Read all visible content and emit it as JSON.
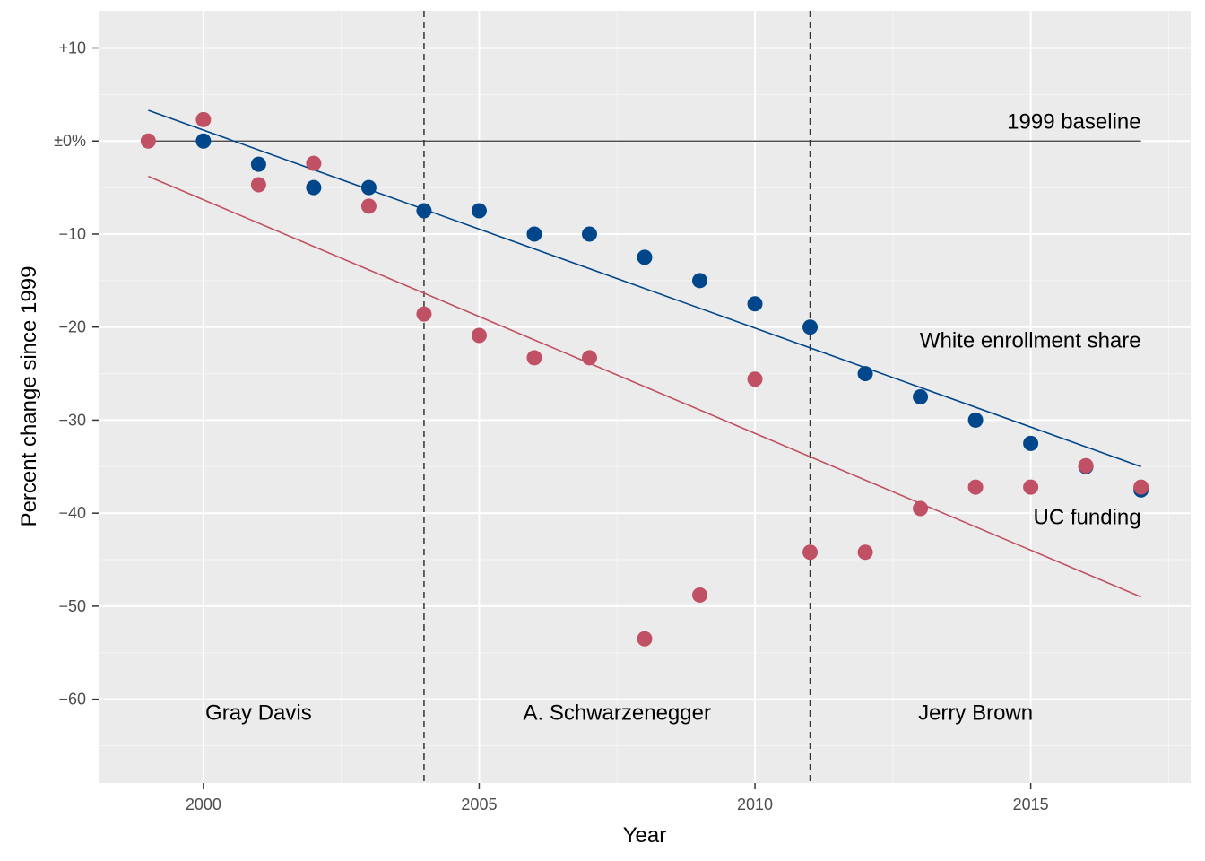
{
  "chart_data": {
    "type": "scatter",
    "title": "",
    "xlabel": "Year",
    "ylabel": "Percent change since 1999",
    "xlim": [
      1998.1,
      2017.9
    ],
    "ylim": [
      -69,
      14
    ],
    "x_ticks": [
      2000,
      2005,
      2010,
      2015
    ],
    "x_tick_labels": [
      "2000",
      "2005",
      "2010",
      "2015"
    ],
    "y_ticks": [
      10,
      0,
      -10,
      -20,
      -30,
      -40,
      -50,
      -60
    ],
    "y_tick_labels": [
      "+10",
      "±0%",
      "−10",
      "−20",
      "−30",
      "−40",
      "−50",
      "−60"
    ],
    "grid": true,
    "legend": "none",
    "series": [
      {
        "name": "White enrollment share",
        "color": "#00468b",
        "x": [
          2000,
          2001,
          2002,
          2003,
          2004,
          2005,
          2006,
          2007,
          2008,
          2009,
          2010,
          2011,
          2012,
          2013,
          2014,
          2015,
          2016,
          2017
        ],
        "y": [
          0,
          -2.5,
          -5,
          -5,
          -7.5,
          -7.5,
          -10,
          -10,
          -12.5,
          -15,
          -17.5,
          -20,
          -25,
          -27.5,
          -30,
          -32.5,
          -35,
          -37.5
        ],
        "trend": {
          "x": [
            1999,
            2017
          ],
          "y": [
            3.3,
            -35
          ]
        }
      },
      {
        "name": "UC funding",
        "color": "#c05063",
        "x": [
          1999,
          2000,
          2001,
          2002,
          2003,
          2004,
          2005,
          2006,
          2007,
          2008,
          2009,
          2010,
          2011,
          2012,
          2013,
          2014,
          2015,
          2016,
          2017
        ],
        "y": [
          0,
          2.3,
          -4.7,
          -2.4,
          -7.0,
          -18.6,
          -20.9,
          -23.3,
          -23.3,
          -53.5,
          -48.8,
          -25.6,
          -44.2,
          -44.2,
          -39.5,
          -37.2,
          -37.2,
          -34.9,
          -37.2
        ],
        "trend": {
          "x": [
            1999,
            2017
          ],
          "y": [
            -3.8,
            -49
          ]
        }
      }
    ],
    "baseline": {
      "y": 0,
      "x": [
        1999,
        2017
      ],
      "label": "1999 baseline"
    },
    "vlines": [
      2004,
      2011
    ],
    "annotations": [
      {
        "text": "Gray Davis",
        "x": 2001,
        "y": -62.2,
        "anchor": "middle"
      },
      {
        "text": "A. Schwarzenegger",
        "x": 2007.5,
        "y": -62.2,
        "anchor": "middle"
      },
      {
        "text": "Jerry Brown",
        "x": 2014,
        "y": -62.2,
        "anchor": "middle"
      },
      {
        "text": "White enrollment share",
        "x": 2017,
        "y": -22.2,
        "anchor": "end"
      },
      {
        "text": "UC funding",
        "x": 2017,
        "y": -41.2,
        "anchor": "end"
      },
      {
        "text": "1999 baseline",
        "x": 2017,
        "y": 1.3,
        "anchor": "end"
      }
    ]
  }
}
